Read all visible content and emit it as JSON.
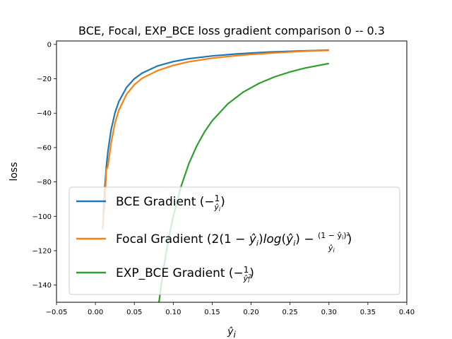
{
  "chart_data": {
    "type": "line",
    "title": "BCE, Focal, EXP_BCE loss gradient comparison 0 -- 0.3",
    "xlabel": "ŷi",
    "ylabel": "loss",
    "xlim": [
      -0.05,
      0.4
    ],
    "ylim": [
      -150,
      2
    ],
    "x_ticks": [
      -0.05,
      0.0,
      0.05,
      0.1,
      0.15,
      0.2,
      0.25,
      0.3,
      0.35,
      0.4
    ],
    "x_tick_labels": [
      "−0.05",
      "0.00",
      "0.05",
      "0.10",
      "0.15",
      "0.20",
      "0.25",
      "0.30",
      "0.35",
      "0.40"
    ],
    "y_ticks": [
      0,
      -20,
      -40,
      -60,
      -80,
      -100,
      -120,
      -140
    ],
    "y_tick_labels": [
      "0",
      "−20",
      "−40",
      "−60",
      "−80",
      "−100",
      "−120",
      "−140"
    ],
    "grid": false,
    "legend_position": "lower-left",
    "series": [
      {
        "name": "BCE Gradient (−1/ŷi)",
        "color": "#1f77b4",
        "x": [
          0.0095,
          0.012,
          0.014,
          0.016,
          0.02,
          0.025,
          0.03,
          0.04,
          0.05,
          0.06,
          0.08,
          0.1,
          0.12,
          0.15,
          0.18,
          0.2,
          0.22,
          0.25,
          0.28,
          0.3
        ],
        "y": [
          -105.3,
          -83.3,
          -71.4,
          -62.5,
          -50.0,
          -40.0,
          -33.3,
          -25.0,
          -20.0,
          -16.7,
          -12.5,
          -10.0,
          -8.3,
          -6.7,
          -5.6,
          -5.0,
          -4.5,
          -4.0,
          -3.6,
          -3.3
        ]
      },
      {
        "name": "Focal Gradient (2(1−ŷi)log(ŷi)−(1−ŷi)²/ŷi)",
        "color": "#ff7f0e",
        "x": [
          0.0091,
          0.012,
          0.014,
          0.016,
          0.02,
          0.025,
          0.03,
          0.04,
          0.05,
          0.06,
          0.08,
          0.1,
          0.12,
          0.15,
          0.18,
          0.2,
          0.22,
          0.25,
          0.28,
          0.3
        ],
        "y": [
          -107.6,
          -92.6,
          -72.8,
          -70.9,
          -57.7,
          -45.9,
          -38.4,
          -29.0,
          -23.4,
          -19.7,
          -15.2,
          -12.2,
          -10.1,
          -8.0,
          -6.6,
          -5.8,
          -5.2,
          -4.4,
          -3.7,
          -3.5
        ]
      },
      {
        "name": "EXP_BCE Gradient (−1/ŷi²)",
        "color": "#2ca02c",
        "x": [
          0.0816,
          0.085,
          0.09,
          0.095,
          0.1,
          0.11,
          0.12,
          0.13,
          0.14,
          0.15,
          0.17,
          0.19,
          0.21,
          0.23,
          0.25,
          0.27,
          0.3
        ],
        "y": [
          -150.2,
          -138.4,
          -123.5,
          -110.8,
          -100.0,
          -82.6,
          -69.4,
          -59.2,
          -51.0,
          -44.4,
          -34.6,
          -27.7,
          -22.7,
          -18.9,
          -16.0,
          -13.7,
          -11.1
        ]
      }
    ]
  },
  "legend": {
    "bce_label": "BCE Gradient (",
    "focal_label": "Focal Gradient (",
    "exp_label": "EXP_BCE Gradient ("
  }
}
